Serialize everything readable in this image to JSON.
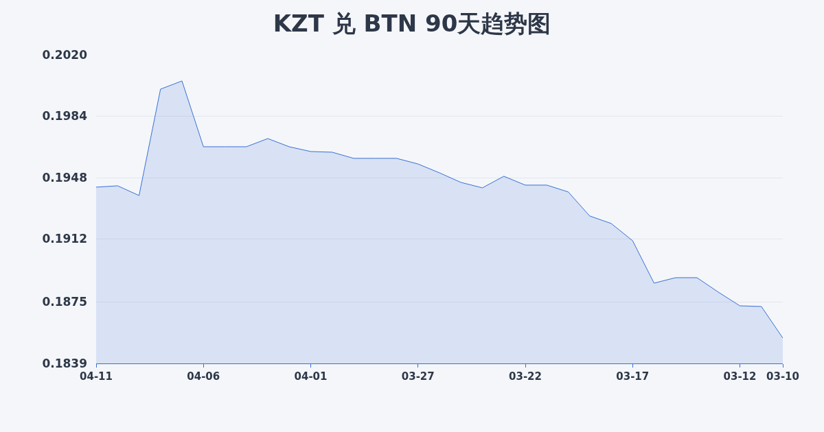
{
  "chart_data": {
    "type": "area",
    "title": "KZT 兑 BTN 90天趋势图",
    "categories": [
      "04-11",
      null,
      null,
      null,
      null,
      "04-06",
      null,
      null,
      null,
      null,
      "04-01",
      null,
      null,
      null,
      null,
      "03-27",
      null,
      null,
      null,
      null,
      "03-22",
      null,
      null,
      null,
      null,
      "03-17",
      null,
      null,
      null,
      null,
      "03-12",
      null,
      "03-10"
    ],
    "series": [
      {
        "color": "#3a6fd6",
        "values": [
          0.19424,
          0.19432,
          0.19375,
          0.19999,
          0.20047,
          0.19661,
          0.19661,
          0.19661,
          0.19709,
          0.19661,
          0.19633,
          0.19629,
          0.19593,
          0.19593,
          0.19593,
          0.1956,
          0.19508,
          0.19452,
          0.1942,
          0.19488,
          0.19436,
          0.19436,
          0.19396,
          0.19255,
          0.19211,
          0.1911,
          0.18861,
          0.18893,
          0.18893,
          0.18808,
          0.18728,
          0.18724,
          0.18539
        ]
      }
    ],
    "ylim": [
      0.1839,
      0.202
    ],
    "yticks": [
      0.1839,
      0.1875,
      0.1912,
      0.1948,
      0.1984,
      {
        "value": 0.202,
        "label": "0.2020"
      }
    ],
    "grid": "y"
  }
}
